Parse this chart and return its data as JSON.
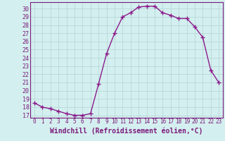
{
  "x": [
    0,
    1,
    2,
    3,
    4,
    5,
    6,
    7,
    8,
    9,
    10,
    11,
    12,
    13,
    14,
    15,
    16,
    17,
    18,
    19,
    20,
    21,
    22,
    23
  ],
  "y": [
    18.5,
    18.0,
    17.8,
    17.5,
    17.2,
    17.0,
    17.0,
    17.2,
    20.8,
    24.5,
    27.0,
    29.0,
    29.5,
    30.2,
    30.3,
    30.3,
    29.5,
    29.2,
    28.8,
    28.8,
    27.8,
    26.5,
    22.5,
    21.0
  ],
  "line_color": "#8b1a8b",
  "marker": "+",
  "markersize": 4,
  "markeredgewidth": 1.0,
  "linewidth": 1.0,
  "xlabel": "Windchill (Refroidissement éolien,°C)",
  "xlim": [
    -0.5,
    23.5
  ],
  "ylim": [
    16.7,
    30.8
  ],
  "yticks": [
    17,
    18,
    19,
    20,
    21,
    22,
    23,
    24,
    25,
    26,
    27,
    28,
    29,
    30
  ],
  "xticks": [
    0,
    1,
    2,
    3,
    4,
    5,
    6,
    7,
    8,
    9,
    10,
    11,
    12,
    13,
    14,
    15,
    16,
    17,
    18,
    19,
    20,
    21,
    22,
    23
  ],
  "bg_color": "#d4efef",
  "grid_color": "#b8d8d8",
  "line_axis_color": "#7a1a7a",
  "tick_label_color": "#7a1a7a",
  "xlabel_color": "#7a1a7a",
  "tick_fontsize": 6,
  "xlabel_fontsize": 7
}
